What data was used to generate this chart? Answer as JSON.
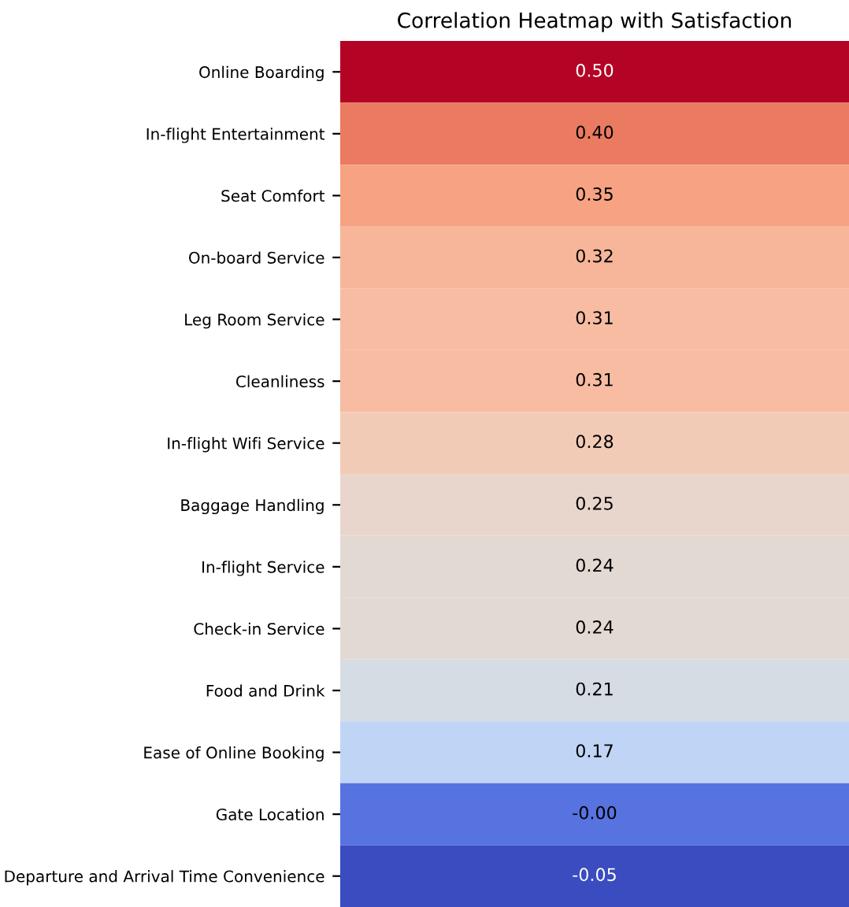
{
  "chart_data": {
    "type": "heatmap",
    "title": "Correlation Heatmap with Satisfaction",
    "categories": [
      null
    ],
    "y_categories": [
      "Online Boarding",
      "In-flight Entertainment",
      "Seat Comfort",
      "On-board Service",
      "Leg Room Service",
      "Cleanliness",
      "In-flight Wifi Service",
      "Baggage Handling",
      "In-flight Service",
      "Check-in Service",
      "Food and Drink",
      "Ease of Online Booking",
      "Gate Location",
      "Departure and Arrival Time Convenience"
    ],
    "cells": [
      [
        0.5
      ],
      [
        0.4
      ],
      [
        0.35
      ],
      [
        0.32
      ],
      [
        0.31
      ],
      [
        0.31
      ],
      [
        0.28
      ],
      [
        0.25
      ],
      [
        0.24
      ],
      [
        0.24
      ],
      [
        0.21
      ],
      [
        0.17
      ],
      [
        0.0
      ],
      [
        -0.05
      ]
    ],
    "cell_labels": [
      [
        "0.50"
      ],
      [
        "0.40"
      ],
      [
        "0.35"
      ],
      [
        "0.32"
      ],
      [
        "0.31"
      ],
      [
        "0.31"
      ],
      [
        "0.28"
      ],
      [
        "0.25"
      ],
      [
        "0.24"
      ],
      [
        "0.24"
      ],
      [
        "0.21"
      ],
      [
        "0.17"
      ],
      [
        "-0.00"
      ],
      [
        "-0.05"
      ]
    ],
    "tick_labels": "y"
  }
}
